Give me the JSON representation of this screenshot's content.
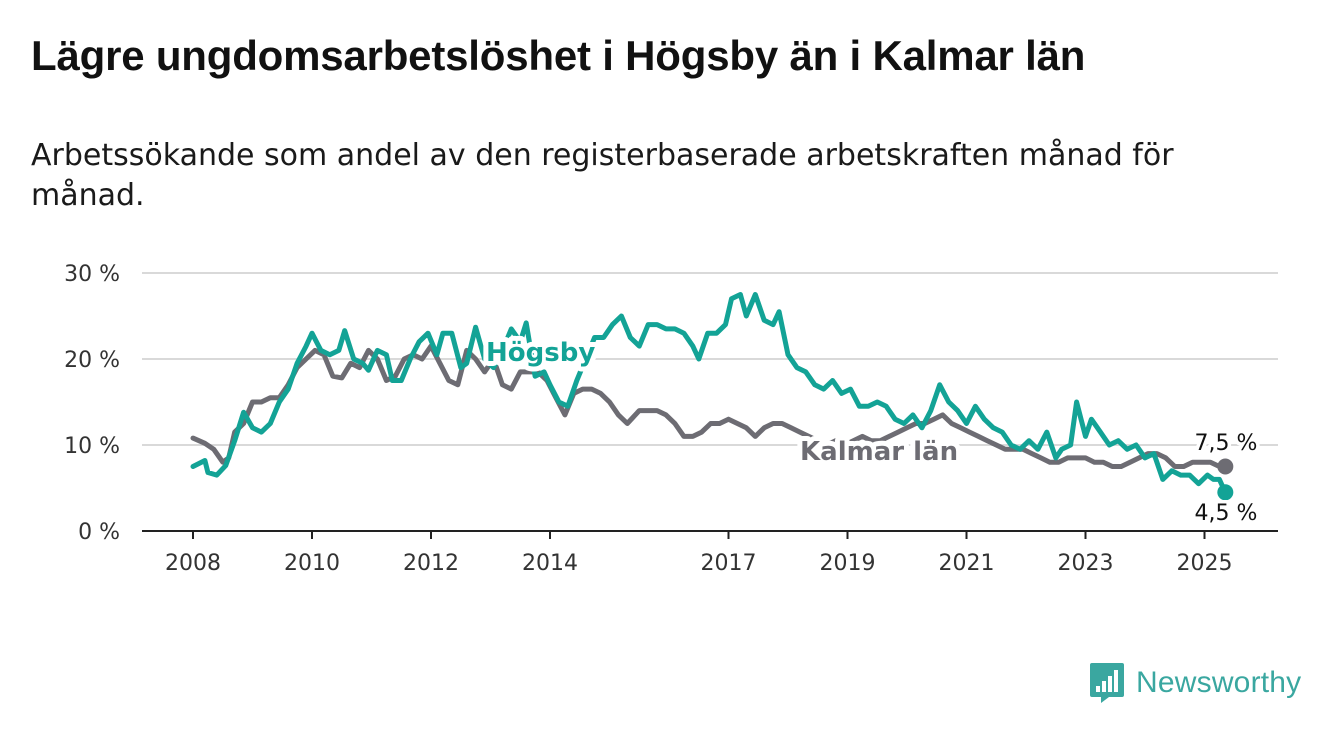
{
  "title": "Lägre ungdomsarbetslöshet i Högsby än i Kalmar län",
  "subtitle": "Arbetssökande som andel av den registerbaserade arbetskraften månad för månad.",
  "brand": {
    "name": "Newsworthy",
    "color": "#3aa7a0",
    "icon": "newsworthy-logo-icon"
  },
  "chart_data": {
    "type": "line",
    "y_ticks": [
      0,
      10,
      20,
      30
    ],
    "y_tick_labels": [
      "0 %",
      "10 %",
      "20 %",
      "30 %"
    ],
    "ylim": [
      0,
      30
    ],
    "x_ticks": [
      2008,
      2010,
      2012,
      2014,
      2017,
      2019,
      2021,
      2023,
      2025
    ],
    "x_tick_labels": [
      "2008",
      "2010",
      "2012",
      "2014",
      "2017",
      "2019",
      "2021",
      "2023",
      "2025"
    ],
    "xlim": [
      2007.2,
      2026.2
    ],
    "grid": "horizontal",
    "series": [
      {
        "name": "Högsby",
        "color": "#13a396",
        "end_label": "4,5 %",
        "x": [
          2008.0,
          2008.2,
          2008.25,
          2008.4,
          2008.55,
          2008.7,
          2008.85,
          2009.0,
          2009.15,
          2009.3,
          2009.45,
          2009.6,
          2009.75,
          2009.9,
          2010.0,
          2010.15,
          2010.3,
          2010.45,
          2010.55,
          2010.7,
          2010.85,
          2010.95,
          2011.1,
          2011.25,
          2011.35,
          2011.5,
          2011.65,
          2011.8,
          2011.95,
          2012.1,
          2012.2,
          2012.35,
          2012.5,
          2012.6,
          2012.75,
          2012.9,
          2013.05,
          2013.2,
          2013.35,
          2013.5,
          2013.6,
          2013.75,
          2013.9,
          2014.0,
          2014.15,
          2014.3,
          2014.45,
          2014.6,
          2014.75,
          2014.9,
          2015.05,
          2015.2,
          2015.35,
          2015.5,
          2015.65,
          2015.8,
          2015.95,
          2016.1,
          2016.25,
          2016.4,
          2016.5,
          2016.65,
          2016.8,
          2016.95,
          2017.05,
          2017.2,
          2017.3,
          2017.45,
          2017.6,
          2017.75,
          2017.85,
          2018.0,
          2018.15,
          2018.3,
          2018.45,
          2018.6,
          2018.75,
          2018.9,
          2019.05,
          2019.2,
          2019.35,
          2019.5,
          2019.65,
          2019.8,
          2019.95,
          2020.1,
          2020.25,
          2020.4,
          2020.55,
          2020.7,
          2020.85,
          2021.0,
          2021.15,
          2021.3,
          2021.45,
          2021.6,
          2021.75,
          2021.9,
          2022.05,
          2022.2,
          2022.35,
          2022.5,
          2022.6,
          2022.75,
          2022.85,
          2023.0,
          2023.1,
          2023.25,
          2023.4,
          2023.55,
          2023.7,
          2023.85,
          2024.0,
          2024.15,
          2024.3,
          2024.45,
          2024.6,
          2024.75,
          2024.9,
          2025.05,
          2025.15,
          2025.25,
          2025.35
        ],
        "y": [
          7.5,
          8.2,
          6.8,
          6.5,
          7.6,
          10.5,
          13.8,
          12.0,
          11.5,
          12.5,
          15.0,
          16.5,
          19.5,
          21.5,
          23.0,
          21.0,
          20.5,
          21.0,
          23.3,
          20.0,
          19.5,
          18.7,
          21.0,
          20.5,
          17.5,
          17.5,
          20.0,
          22.0,
          23.0,
          20.5,
          23.0,
          23.0,
          19.0,
          19.5,
          23.7,
          20.0,
          19.0,
          21.0,
          23.5,
          22.0,
          24.2,
          18.0,
          18.5,
          17.0,
          15.0,
          14.5,
          17.5,
          20.0,
          22.5,
          22.5,
          24.0,
          25.0,
          22.5,
          21.5,
          24.0,
          24.0,
          23.5,
          23.5,
          23.0,
          21.5,
          20.0,
          23.0,
          23.0,
          24.0,
          27.0,
          27.5,
          25.0,
          27.5,
          24.5,
          24.0,
          25.5,
          20.5,
          19.0,
          18.5,
          17.0,
          16.5,
          17.5,
          16.0,
          16.5,
          14.5,
          14.5,
          15.0,
          14.5,
          13.0,
          12.5,
          13.5,
          12.0,
          14.0,
          17.0,
          15.0,
          14.0,
          12.5,
          14.5,
          13.0,
          12.0,
          11.5,
          10.0,
          9.5,
          10.5,
          9.5,
          11.5,
          8.5,
          9.5,
          10.0,
          15.0,
          11.0,
          13.0,
          11.5,
          10.0,
          10.5,
          9.5,
          10.0,
          8.5,
          9.0,
          6.0,
          7.0,
          6.5,
          6.5,
          5.5,
          6.5,
          6.0,
          6.0,
          4.5
        ]
      },
      {
        "name": "Kalmar län",
        "color": "#6d6c73",
        "end_label": "7,5 %",
        "x": [
          2008.0,
          2008.2,
          2008.35,
          2008.5,
          2008.6,
          2008.7,
          2008.85,
          2009.0,
          2009.15,
          2009.3,
          2009.45,
          2009.6,
          2009.75,
          2009.9,
          2010.05,
          2010.2,
          2010.35,
          2010.5,
          2010.65,
          2010.8,
          2010.95,
          2011.1,
          2011.25,
          2011.4,
          2011.55,
          2011.7,
          2011.85,
          2012.0,
          2012.15,
          2012.3,
          2012.45,
          2012.6,
          2012.75,
          2012.9,
          2013.05,
          2013.2,
          2013.35,
          2013.5,
          2013.65,
          2013.8,
          2013.95,
          2014.1,
          2014.25,
          2014.4,
          2014.55,
          2014.7,
          2014.85,
          2015.0,
          2015.15,
          2015.3,
          2015.5,
          2015.65,
          2015.8,
          2015.95,
          2016.1,
          2016.25,
          2016.4,
          2016.55,
          2016.7,
          2016.85,
          2017.0,
          2017.15,
          2017.3,
          2017.45,
          2017.6,
          2017.75,
          2017.9,
          2018.05,
          2018.2,
          2018.35,
          2018.5,
          2018.65,
          2018.8,
          2018.95,
          2019.1,
          2019.25,
          2019.4,
          2019.55,
          2019.7,
          2019.85,
          2020.0,
          2020.15,
          2020.3,
          2020.45,
          2020.6,
          2020.75,
          2020.9,
          2021.05,
          2021.2,
          2021.35,
          2021.5,
          2021.65,
          2021.8,
          2021.95,
          2022.1,
          2022.25,
          2022.4,
          2022.55,
          2022.7,
          2022.85,
          2023.0,
          2023.15,
          2023.3,
          2023.45,
          2023.6,
          2023.75,
          2023.9,
          2024.05,
          2024.2,
          2024.35,
          2024.5,
          2024.65,
          2024.8,
          2024.95,
          2025.1,
          2025.25,
          2025.35
        ],
        "y": [
          10.8,
          10.2,
          9.5,
          8.0,
          8.5,
          11.5,
          12.5,
          15.0,
          15.0,
          15.5,
          15.5,
          17.0,
          19.0,
          20.0,
          21.0,
          20.5,
          18.0,
          17.8,
          19.5,
          19.0,
          21.0,
          20.0,
          17.5,
          18.0,
          20.0,
          20.5,
          20.0,
          21.5,
          19.5,
          17.5,
          17.0,
          21.0,
          20.0,
          18.5,
          20.0,
          17.0,
          16.5,
          18.5,
          18.5,
          18.5,
          17.5,
          15.5,
          13.5,
          16.0,
          16.5,
          16.5,
          16.0,
          15.0,
          13.5,
          12.5,
          14.0,
          14.0,
          14.0,
          13.5,
          12.5,
          11.0,
          11.0,
          11.5,
          12.5,
          12.5,
          13.0,
          12.5,
          12.0,
          11.0,
          12.0,
          12.5,
          12.5,
          12.0,
          11.5,
          11.0,
          10.5,
          10.0,
          10.5,
          10.0,
          10.5,
          11.0,
          10.5,
          10.5,
          11.0,
          11.5,
          12.0,
          12.5,
          12.5,
          13.0,
          13.5,
          12.5,
          12.0,
          11.5,
          11.0,
          10.5,
          10.0,
          9.5,
          9.5,
          9.5,
          9.0,
          8.5,
          8.0,
          8.0,
          8.5,
          8.5,
          8.5,
          8.0,
          8.0,
          7.5,
          7.5,
          8.0,
          8.5,
          9.0,
          9.0,
          8.5,
          7.5,
          7.5,
          8.0,
          8.0,
          8.0,
          7.5,
          7.5
        ]
      }
    ]
  }
}
